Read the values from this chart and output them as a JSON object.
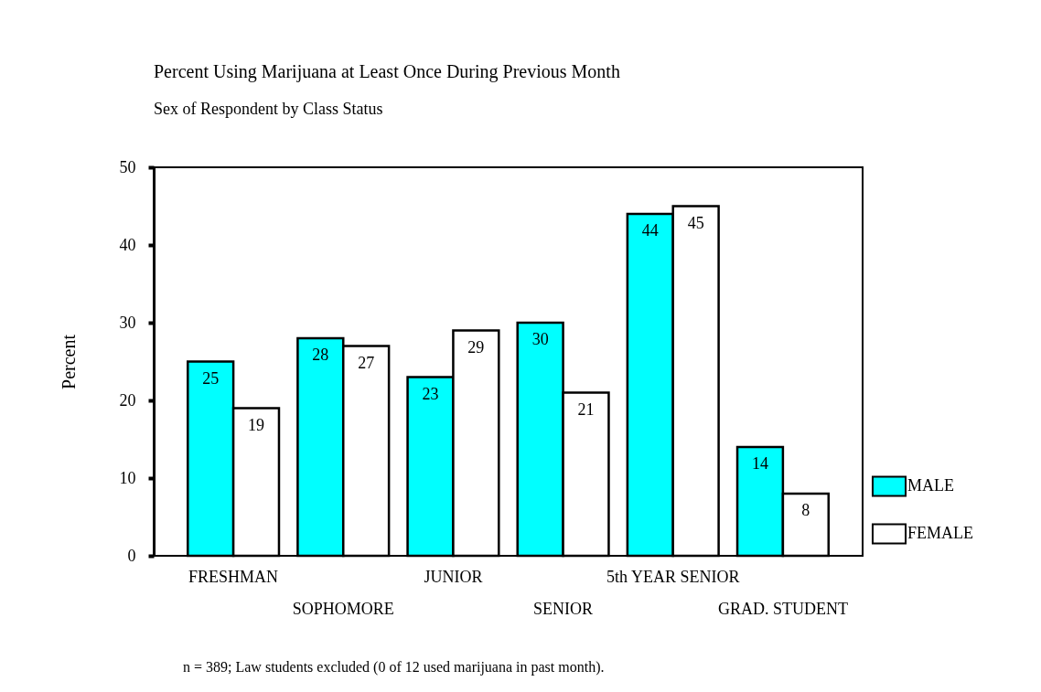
{
  "chart_data": {
    "type": "bar",
    "title": "Percent Using Marijuana at Least Once During Previous Month",
    "subtitle": "Sex of Respondent by Class Status",
    "ylabel": "Percent",
    "categories": [
      "FRESHMAN",
      "SOPHOMORE",
      "JUNIOR",
      "SENIOR",
      "5th YEAR SENIOR",
      "GRAD. STUDENT"
    ],
    "series": [
      {
        "name": "MALE",
        "color": "#00ffff",
        "values": [
          25,
          28,
          23,
          30,
          44,
          14
        ]
      },
      {
        "name": "FEMALE",
        "color": "#ffffff",
        "values": [
          19,
          27,
          29,
          21,
          45,
          8
        ]
      }
    ],
    "ylim": [
      0,
      50
    ],
    "yticks": [
      0,
      10,
      20,
      30,
      40,
      50
    ],
    "grid": false,
    "legend": "bottom right",
    "data_labels": true,
    "annotations": [
      "n = 389; Law students excluded (0 of 12 used marijuana in past month)."
    ]
  }
}
